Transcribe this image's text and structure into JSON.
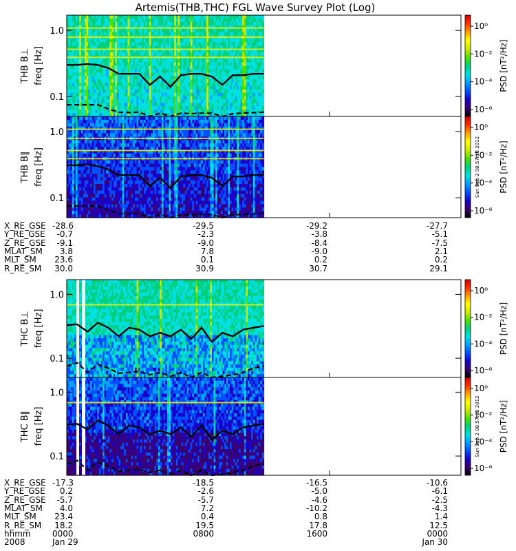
{
  "title": "Artemis(THB,THC) FGL Wave Survey Plot (Log)",
  "stamp": "Sun Sep  2 08:57:18 2012",
  "colorbar": {
    "label": "PSD [nT²/Hz]",
    "ticks": [
      "10⁰",
      "10⁻²",
      "10⁻⁴",
      "10⁻⁶"
    ],
    "colormap": [
      "#000000",
      "#3a0070",
      "#1a00c8",
      "#0050ff",
      "#00a0ff",
      "#00e0e0",
      "#00d080",
      "#50e000",
      "#d0e800",
      "#ffff00",
      "#ffa000",
      "#ff3000",
      "#d00000"
    ]
  },
  "chart_data": [
    {
      "type": "heatmap",
      "panel": "THB B⊥",
      "ylabel": "freq [Hz]",
      "yticks": [
        "1.0",
        "0.1"
      ],
      "yscale": "log",
      "ylim": [
        0.05,
        1.7
      ],
      "data_extent_fraction": 0.5,
      "upper_line_hz": [
        0.3,
        0.3,
        0.31,
        0.3,
        0.27,
        0.22,
        0.22,
        0.22,
        0.15,
        0.2,
        0.14,
        0.21,
        0.22,
        0.22,
        0.2,
        0.15,
        0.21,
        0.21,
        0.22,
        0.22
      ],
      "lower_line_hz": [
        0.075,
        0.075,
        0.075,
        0.075,
        0.065,
        0.058,
        0.057,
        0.058,
        0.05,
        0.056,
        0.05,
        0.056,
        0.055,
        0.056,
        0.056,
        0.05,
        0.055,
        0.056,
        0.057,
        0.058
      ]
    },
    {
      "type": "heatmap",
      "panel": "THB B∥",
      "ylabel": "freq [Hz]",
      "yticks": [
        "1.0",
        "0.1"
      ],
      "yscale": "log",
      "ylim": [
        0.05,
        1.7
      ],
      "data_extent_fraction": 0.5,
      "upper_line_hz": [
        0.31,
        0.31,
        0.32,
        0.3,
        0.27,
        0.22,
        0.22,
        0.22,
        0.15,
        0.2,
        0.14,
        0.21,
        0.22,
        0.22,
        0.2,
        0.15,
        0.21,
        0.21,
        0.22,
        0.22
      ],
      "lower_line_hz": [
        0.075,
        0.075,
        0.075,
        0.075,
        0.065,
        0.058,
        0.057,
        0.058,
        0.05,
        0.056,
        0.05,
        0.056,
        0.055,
        0.056,
        0.056,
        0.05,
        0.055,
        0.056,
        0.057,
        0.058
      ]
    },
    {
      "type": "heatmap",
      "panel": "THC B⊥",
      "ylabel": "freq [Hz]",
      "yticks": [
        "1.0",
        "0.1"
      ],
      "yscale": "log",
      "ylim": [
        0.05,
        1.7
      ],
      "data_extent_fraction": 0.5,
      "upper_line_hz": [
        0.33,
        0.34,
        0.26,
        0.36,
        0.3,
        0.22,
        0.3,
        0.28,
        0.22,
        0.25,
        0.22,
        0.28,
        0.2,
        0.3,
        0.18,
        0.25,
        0.22,
        0.28,
        0.3,
        0.32
      ],
      "lower_line_hz": [
        0.075,
        0.085,
        0.06,
        0.08,
        0.07,
        0.058,
        0.06,
        0.062,
        0.055,
        0.06,
        0.052,
        0.06,
        0.05,
        0.06,
        0.05,
        0.052,
        0.055,
        0.06,
        0.07,
        0.075
      ]
    },
    {
      "type": "heatmap",
      "panel": "THC B∥",
      "ylabel": "freq [Hz]",
      "yticks": [
        "1.0",
        "0.1"
      ],
      "yscale": "log",
      "ylim": [
        0.05,
        1.7
      ],
      "data_extent_fraction": 0.5,
      "upper_line_hz": [
        0.31,
        0.32,
        0.26,
        0.36,
        0.3,
        0.22,
        0.3,
        0.28,
        0.22,
        0.25,
        0.22,
        0.28,
        0.2,
        0.3,
        0.18,
        0.25,
        0.22,
        0.28,
        0.3,
        0.32
      ],
      "lower_line_hz": [
        0.075,
        0.085,
        0.06,
        0.08,
        0.07,
        0.058,
        0.06,
        0.062,
        0.055,
        0.06,
        0.052,
        0.06,
        0.05,
        0.06,
        0.05,
        0.052,
        0.055,
        0.06,
        0.07,
        0.075
      ]
    }
  ],
  "ephem_thb": {
    "labels": [
      "X_RE_GSE",
      "Y_RE_GSE",
      "Z_RE_GSE",
      "MLAT_SM",
      "MLT_SM",
      "R_RE_SM"
    ],
    "cols": [
      [
        "-28.6",
        "-0.7",
        "-9.1",
        "3.8",
        "23.6",
        "30.0"
      ],
      [
        "-29.5",
        "-2.3",
        "-9.0",
        "7.8",
        "0.1",
        "30.9"
      ],
      [
        "-29.2",
        "-3.8",
        "-8.4",
        "-9.0",
        "0.2",
        "30.7"
      ],
      [
        "-27.7",
        "-5.1",
        "-7.5",
        "2.1",
        "0.2",
        "29.1"
      ]
    ]
  },
  "ephem_thc": {
    "labels": [
      "X_RE_GSE",
      "Y_RE_GSE",
      "Z_RE_GSE",
      "MLAT_SM",
      "MLT_SM",
      "R_RE_SM",
      "hhmm",
      "2008"
    ],
    "cols": [
      [
        "-17.3",
        "0.2",
        "-5.7",
        "4.0",
        "23.4",
        "18.2",
        "0000",
        "Jan 29"
      ],
      [
        "-18.5",
        "-2.6",
        "-5.7",
        "7.2",
        "0.4",
        "19.5",
        "0800",
        ""
      ],
      [
        "-16.5",
        "-5.0",
        "-4.6",
        "-10.2",
        "0.8",
        "17.8",
        "1600",
        ""
      ],
      [
        "-10.6",
        "-6.1",
        "-2.5",
        "-4.3",
        "1.4",
        "12.5",
        "0000",
        "Jan 30"
      ]
    ]
  }
}
